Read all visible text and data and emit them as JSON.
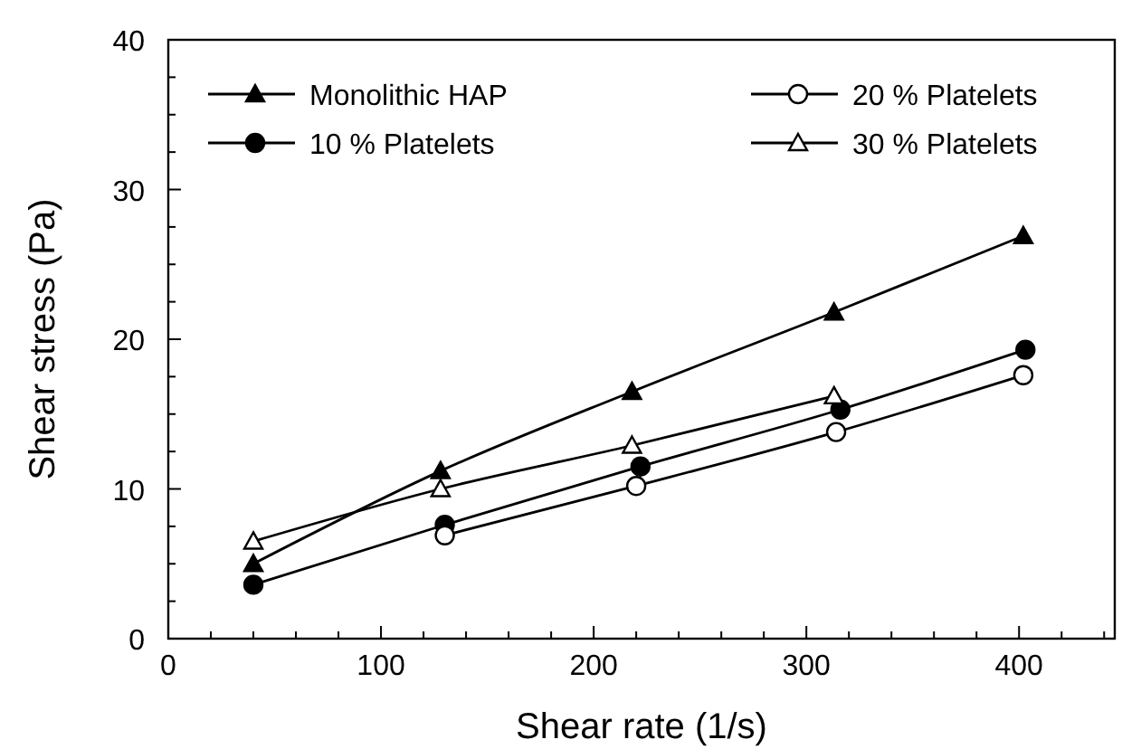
{
  "chart_data": {
    "type": "line",
    "xlabel": "Shear rate (1/s)",
    "ylabel": "Shear stress (Pa)",
    "xlim": [
      0,
      445
    ],
    "ylim": [
      0,
      40
    ],
    "xticks": [
      0,
      {
        "value": 20,
        "label": null
      },
      {
        "value": 40,
        "label": null
      },
      {
        "value": 60,
        "label": null
      },
      {
        "value": 80,
        "label": null
      },
      100,
      {
        "value": 120,
        "label": null
      },
      {
        "value": 140,
        "label": null
      },
      {
        "value": 160,
        "label": null
      },
      {
        "value": 180,
        "label": null
      },
      200,
      {
        "value": 220,
        "label": null
      },
      {
        "value": 240,
        "label": null
      },
      {
        "value": 260,
        "label": null
      },
      {
        "value": 280,
        "label": null
      },
      300,
      {
        "value": 320,
        "label": null
      },
      {
        "value": 340,
        "label": null
      },
      {
        "value": 360,
        "label": null
      },
      {
        "value": 380,
        "label": null
      },
      400,
      {
        "value": 420,
        "label": null
      },
      {
        "value": 440,
        "label": null
      }
    ],
    "yticks": [
      0,
      {
        "value": 2.5,
        "label": null
      },
      {
        "value": 5,
        "label": null
      },
      {
        "value": 7.5,
        "label": null
      },
      10,
      {
        "value": 12.5,
        "label": null
      },
      {
        "value": 15,
        "label": null
      },
      {
        "value": 17.5,
        "label": null
      },
      20,
      {
        "value": 22.5,
        "label": null
      },
      {
        "value": 25,
        "label": null
      },
      {
        "value": 27.5,
        "label": null
      },
      30,
      {
        "value": 32.5,
        "label": null
      },
      {
        "value": 35,
        "label": null
      },
      {
        "value": 37.5,
        "label": null
      },
      40
    ],
    "grid": false,
    "legend": "top",
    "line_style": "solid",
    "series": [
      {
        "name": "Monolithic HAP",
        "color": "#000000",
        "marker": "triangle",
        "x": [
          40,
          128,
          218,
          313,
          402
        ],
        "values": [
          5,
          11.2,
          16.5,
          21.8,
          26.9
        ]
      },
      {
        "name": "10 % Platelets",
        "color": "#000000",
        "marker": "circle",
        "x": [
          40,
          130,
          222,
          316,
          403
        ],
        "values": [
          3.6,
          7.6,
          11.5,
          15.3,
          19.3
        ]
      },
      {
        "name": "20 % Platelets",
        "color": "#000000",
        "marker": "circle",
        "x": [
          130,
          220,
          314,
          402
        ],
        "values": [
          6.9,
          10.2,
          13.8,
          17.6
        ]
      },
      {
        "name": "30 % Platelets",
        "color": "#000000",
        "marker": "triangle",
        "x": [
          40,
          128,
          218,
          313
        ],
        "values": [
          6.5,
          10,
          12.9,
          16.2
        ]
      }
    ]
  }
}
